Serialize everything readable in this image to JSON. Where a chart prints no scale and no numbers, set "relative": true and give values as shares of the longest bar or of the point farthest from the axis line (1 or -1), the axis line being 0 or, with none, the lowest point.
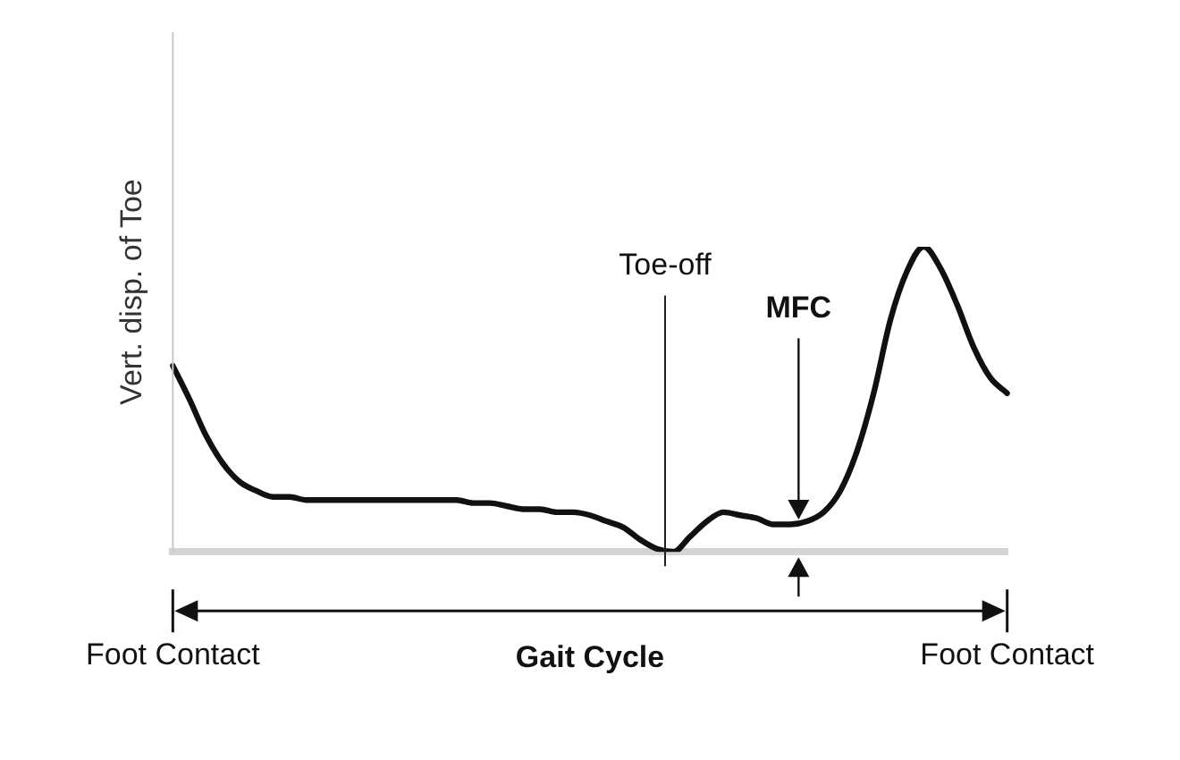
{
  "chart_data": {
    "type": "line",
    "relative": true,
    "ylabel": "Vert. disp. of Toe",
    "xlabel": "Gait Cycle",
    "color": "#111111",
    "marker": "none",
    "categories": [
      "Foot Contact",
      null,
      null,
      null,
      null,
      null,
      null,
      null,
      null,
      null,
      null,
      null,
      null,
      null,
      null,
      null,
      null,
      null,
      null,
      null,
      null,
      null,
      null,
      null,
      null,
      null,
      null,
      null,
      null,
      null,
      null,
      null,
      null,
      null,
      null,
      null,
      null,
      null,
      null,
      null,
      null,
      null,
      null,
      null,
      null,
      null,
      null,
      null,
      null,
      null,
      "Foot Contact"
    ],
    "values": [
      0.61,
      0.5,
      0.38,
      0.29,
      0.23,
      0.2,
      0.18,
      0.18,
      0.17,
      0.17,
      0.17,
      0.17,
      0.17,
      0.17,
      0.17,
      0.17,
      0.17,
      0.17,
      0.16,
      0.16,
      0.15,
      0.14,
      0.14,
      0.13,
      0.13,
      0.12,
      0.1,
      0.08,
      0.04,
      0.01,
      0,
      0.05,
      0.1,
      0.13,
      0.12,
      0.11,
      0.09,
      0.09,
      0.1,
      0.13,
      0.2,
      0.33,
      0.52,
      0.76,
      0.92,
      1,
      0.93,
      0.81,
      0.67,
      0.57,
      0.52
    ],
    "annotations": [
      "Toe-off",
      "MFC"
    ],
    "grid": false,
    "legend": false
  }
}
